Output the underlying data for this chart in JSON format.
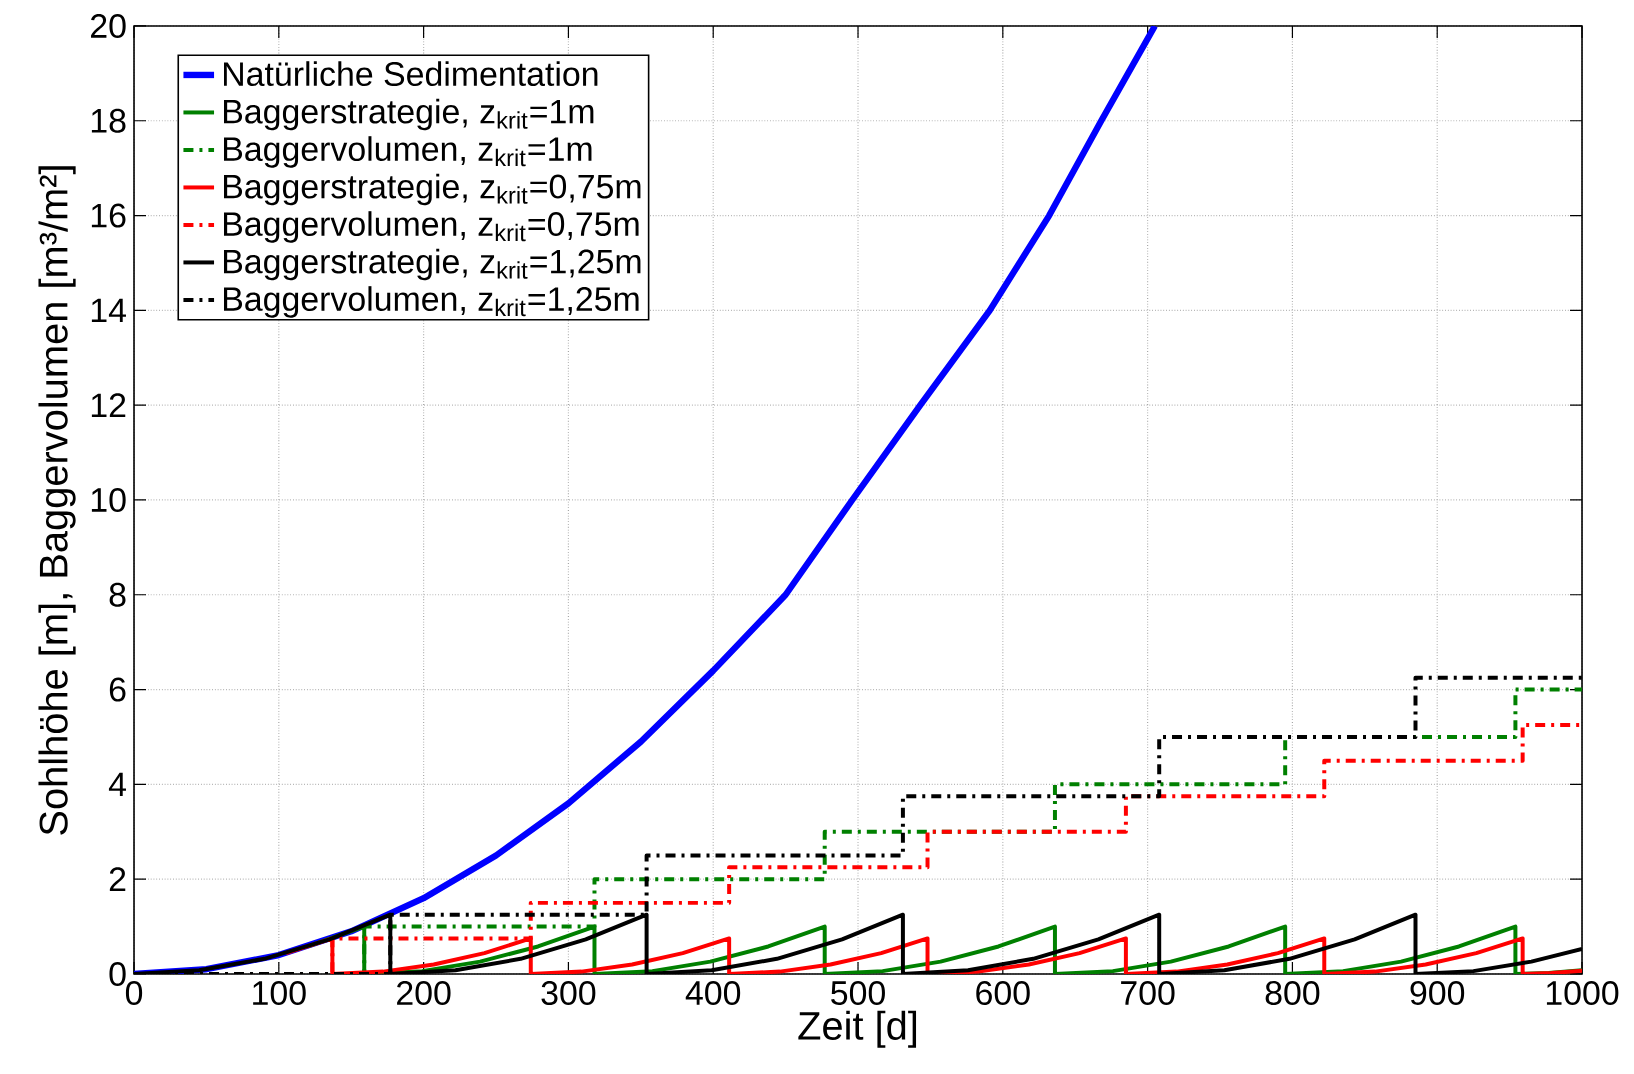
{
  "chart_data": {
    "type": "line",
    "xlabel": "Zeit [d]",
    "ylabel": "Sohlhöhe [m], Baggervolumen [m³/m²]",
    "xlim": [
      0,
      1000
    ],
    "ylim": [
      0,
      20
    ],
    "xticks": [
      0,
      100,
      200,
      300,
      400,
      500,
      600,
      700,
      800,
      900,
      1000
    ],
    "yticks": [
      0,
      2,
      4,
      6,
      8,
      10,
      12,
      14,
      16,
      18,
      20
    ],
    "grid": true,
    "legend": "top left",
    "series": [
      {
        "name": "Natürliche Sedimentation",
        "color": "#0000ff",
        "line_style": "solid",
        "x": [
          0,
          50,
          100,
          150,
          200,
          250,
          300,
          350,
          400,
          450,
          496,
          543,
          591,
          632,
          668,
          705
        ],
        "values": [
          0,
          0.1,
          0.4,
          0.9,
          1.6,
          2.5,
          3.6,
          4.9,
          6.4,
          8,
          10,
          12,
          14,
          16,
          18,
          20
        ]
      },
      {
        "name": "Baggerstrategie, z$_{krit}$=1m",
        "color": "#008000",
        "line_style": "solid",
        "x": [
          120,
          159,
          159,
          199,
          239,
          279,
          318,
          318,
          358,
          398,
          438,
          477,
          477,
          517,
          557,
          597,
          636,
          636,
          676,
          716,
          756,
          795,
          795,
          835,
          875,
          915,
          954,
          954,
          977,
          1000
        ],
        "values": [
          0.58,
          1,
          0,
          0.06,
          0.26,
          0.58,
          1,
          0,
          0.06,
          0.26,
          0.58,
          1,
          0,
          0.06,
          0.26,
          0.58,
          1,
          0,
          0.06,
          0.26,
          0.58,
          1,
          0,
          0.06,
          0.26,
          0.58,
          1,
          0,
          0.02,
          0.08
        ]
      },
      {
        "name": "Baggervolumen, z$_{krit}$=1m",
        "color": "#008000",
        "line_style": "dashdot",
        "x": [
          0,
          159,
          159,
          318,
          318,
          477,
          477,
          636,
          636,
          795,
          795,
          954,
          954,
          1000
        ],
        "values": [
          0,
          0,
          1,
          1,
          2,
          2,
          3,
          3,
          4,
          4,
          5,
          5,
          6,
          6
        ]
      },
      {
        "name": "Baggerstrategie, z$_{krit}$=0,75m",
        "color": "#ff0000",
        "line_style": "solid",
        "x": [
          105,
          137,
          137,
          172,
          207,
          242,
          274,
          274,
          309,
          344,
          379,
          411,
          411,
          446,
          481,
          516,
          548,
          548,
          583,
          618,
          653,
          685,
          685,
          720,
          755,
          790,
          822,
          822,
          857,
          892,
          927,
          959,
          959,
          979,
          1000
        ],
        "values": [
          0.44,
          0.75,
          0,
          0.05,
          0.2,
          0.44,
          0.75,
          0,
          0.05,
          0.2,
          0.44,
          0.75,
          0,
          0.05,
          0.2,
          0.44,
          0.75,
          0,
          0.05,
          0.2,
          0.44,
          0.75,
          0,
          0.05,
          0.2,
          0.44,
          0.75,
          0,
          0.05,
          0.2,
          0.44,
          0.75,
          0,
          0.02,
          0.07
        ]
      },
      {
        "name": "Baggervolumen, z$_{krit}$=0,75m",
        "color": "#ff0000",
        "line_style": "dashdot",
        "x": [
          0,
          137,
          137,
          274,
          274,
          411,
          411,
          548,
          548,
          685,
          685,
          822,
          822,
          959,
          959,
          1000
        ],
        "values": [
          0,
          0,
          0.75,
          0.75,
          1.5,
          1.5,
          2.25,
          2.25,
          3,
          3,
          3.75,
          3.75,
          4.5,
          4.5,
          5.25,
          5.25
        ]
      },
      {
        "name": "Baggerstrategie, z$_{krit}$=1,25m",
        "color": "#000000",
        "line_style": "solid",
        "x": [
          0,
          45,
          90,
          135,
          177,
          177,
          222,
          267,
          312,
          354,
          354,
          399,
          444,
          489,
          531,
          531,
          576,
          621,
          666,
          708,
          708,
          753,
          798,
          843,
          885,
          885,
          925,
          965,
          1000
        ],
        "values": [
          0,
          0.08,
          0.32,
          0.73,
          1.25,
          0,
          0.08,
          0.32,
          0.73,
          1.25,
          0,
          0.08,
          0.32,
          0.73,
          1.25,
          0,
          0.08,
          0.32,
          0.73,
          1.25,
          0,
          0.08,
          0.32,
          0.73,
          1.25,
          0,
          0.06,
          0.26,
          0.53
        ]
      },
      {
        "name": "Baggervolumen, z$_{krit}$=1,25m",
        "color": "#000000",
        "line_style": "dashdot",
        "x": [
          0,
          177,
          177,
          354,
          354,
          531,
          531,
          708,
          708,
          885,
          885,
          1000
        ],
        "values": [
          0,
          0,
          1.25,
          1.25,
          2.5,
          2.5,
          3.75,
          3.75,
          5,
          5,
          6.25,
          6.25
        ]
      }
    ]
  }
}
